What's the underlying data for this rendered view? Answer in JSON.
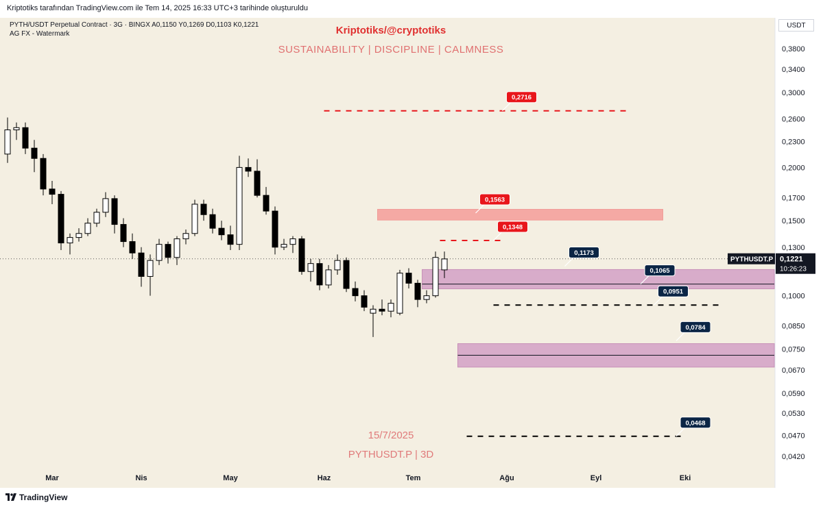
{
  "header": {
    "attribution": "Kriptotiks tarafından TradingView.com ile Tem 14, 2025 16:33 UTC+3 tarihinde oluşturuldu",
    "symbol_line": "PYTH/USDT Perpetual Contract · 3G · BINGX  A0,1150  Y0,1269  D0,1103  K0,1221",
    "indicator_line": "AG FX - Watermark",
    "currency": "USDT"
  },
  "overlay": {
    "brand_title": "Kriptotiks/@cryptotiks",
    "slogan": "SUSTAINABILITY  |  DISCIPLINE  |  CALMNESS",
    "date": "15/7/2025",
    "symbol_tf": "PYTHUSDT.P | 3D"
  },
  "footer": {
    "brand": "TradingView"
  },
  "colors": {
    "background": "#f4efe2",
    "bull": "#ffffff",
    "bear": "#000000",
    "red_label": "#e8161b",
    "navy_label": "#0b2545",
    "pink_zone": "#f4a4a0",
    "purple_zone": "#d6a8c8"
  },
  "chart_data": {
    "type": "candlestick",
    "scale": "log",
    "ylim": [
      0.04,
      0.42
    ],
    "y_ticks": [
      "0,3800",
      "0,3400",
      "0,3000",
      "0,2600",
      "0,2300",
      "0,2000",
      "0,1700",
      "0,1500",
      "0,1300",
      "0,1000",
      "0,0850",
      "0,0750",
      "0,0670",
      "0,0590",
      "0,0530",
      "0,0470",
      "0,0420"
    ],
    "y_tick_values": [
      0.38,
      0.34,
      0.3,
      0.26,
      0.23,
      0.2,
      0.17,
      0.15,
      0.13,
      0.1,
      0.085,
      0.075,
      0.067,
      0.059,
      0.053,
      0.047,
      0.042
    ],
    "x_months": [
      {
        "label": "Mar",
        "index": 5
      },
      {
        "label": "Nis",
        "index": 15
      },
      {
        "label": "May",
        "index": 25
      },
      {
        "label": "Haz",
        "index": 35.5
      },
      {
        "label": "Tem",
        "index": 45.5
      },
      {
        "label": "Ağu",
        "index": 56
      },
      {
        "label": "Eyl",
        "index": 66
      },
      {
        "label": "Eki",
        "index": 76
      }
    ],
    "candles": [
      [
        0.215,
        0.262,
        0.205,
        0.245
      ],
      [
        0.245,
        0.255,
        0.232,
        0.248
      ],
      [
        0.248,
        0.255,
        0.215,
        0.222
      ],
      [
        0.222,
        0.232,
        0.195,
        0.21
      ],
      [
        0.21,
        0.215,
        0.172,
        0.178
      ],
      [
        0.178,
        0.186,
        0.164,
        0.173
      ],
      [
        0.173,
        0.176,
        0.128,
        0.133
      ],
      [
        0.133,
        0.14,
        0.125,
        0.137
      ],
      [
        0.137,
        0.144,
        0.134,
        0.14
      ],
      [
        0.14,
        0.152,
        0.138,
        0.148
      ],
      [
        0.148,
        0.16,
        0.145,
        0.157
      ],
      [
        0.157,
        0.175,
        0.153,
        0.169
      ],
      [
        0.169,
        0.172,
        0.14,
        0.147
      ],
      [
        0.147,
        0.152,
        0.13,
        0.134
      ],
      [
        0.134,
        0.14,
        0.122,
        0.126
      ],
      [
        0.126,
        0.13,
        0.105,
        0.111
      ],
      [
        0.111,
        0.125,
        0.1,
        0.121
      ],
      [
        0.121,
        0.136,
        0.118,
        0.132
      ],
      [
        0.132,
        0.134,
        0.119,
        0.123
      ],
      [
        0.123,
        0.138,
        0.118,
        0.136
      ],
      [
        0.136,
        0.143,
        0.132,
        0.14
      ],
      [
        0.14,
        0.168,
        0.138,
        0.164
      ],
      [
        0.164,
        0.168,
        0.15,
        0.155
      ],
      [
        0.155,
        0.16,
        0.14,
        0.144
      ],
      [
        0.144,
        0.15,
        0.135,
        0.139
      ],
      [
        0.139,
        0.146,
        0.128,
        0.132
      ],
      [
        0.132,
        0.213,
        0.128,
        0.2
      ],
      [
        0.2,
        0.21,
        0.19,
        0.196
      ],
      [
        0.196,
        0.209,
        0.17,
        0.172
      ],
      [
        0.172,
        0.18,
        0.155,
        0.158
      ],
      [
        0.158,
        0.162,
        0.125,
        0.13
      ],
      [
        0.13,
        0.136,
        0.128,
        0.132
      ],
      [
        0.132,
        0.138,
        0.126,
        0.136
      ],
      [
        0.136,
        0.138,
        0.112,
        0.114
      ],
      [
        0.114,
        0.122,
        0.108,
        0.119
      ],
      [
        0.119,
        0.122,
        0.103,
        0.106
      ],
      [
        0.106,
        0.118,
        0.104,
        0.115
      ],
      [
        0.115,
        0.125,
        0.112,
        0.121
      ],
      [
        0.121,
        0.123,
        0.102,
        0.104
      ],
      [
        0.104,
        0.108,
        0.097,
        0.1
      ],
      [
        0.1,
        0.103,
        0.092,
        0.094
      ],
      [
        0.091,
        0.095,
        0.08,
        0.093
      ],
      [
        0.093,
        0.098,
        0.09,
        0.092
      ],
      [
        0.092,
        0.098,
        0.089,
        0.096
      ],
      [
        0.091,
        0.115,
        0.09,
        0.113
      ],
      [
        0.113,
        0.116,
        0.104,
        0.107
      ],
      [
        0.107,
        0.109,
        0.094,
        0.098
      ],
      [
        0.098,
        0.103,
        0.096,
        0.1
      ],
      [
        0.1,
        0.127,
        0.099,
        0.123
      ],
      [
        0.115,
        0.127,
        0.11,
        0.122
      ]
    ],
    "current_price": {
      "value": 0.1221,
      "label": "0,1221",
      "ticker": "PYTHUSDT.P",
      "countdown": "10:26:23"
    },
    "zones": [
      {
        "name": "resistance-zone",
        "low": 0.1505,
        "high": 0.1595,
        "start": 41.5,
        "end": 73.5,
        "kind": "pink"
      },
      {
        "name": "support-zone-1",
        "low": 0.1038,
        "high": 0.1152,
        "start": 46.5,
        "end": 86,
        "kind": "purple",
        "mid": 0.1065
      },
      {
        "name": "support-zone-2",
        "low": 0.068,
        "high": 0.0772,
        "start": 50.5,
        "end": 86,
        "kind": "purple",
        "mid": 0.0725
      }
    ],
    "dashed_lines": [
      {
        "name": "target-0.2716",
        "value": 0.2716,
        "start": 35.5,
        "end": 69.5,
        "color": "red"
      },
      {
        "name": "target-0.1348",
        "value": 0.1348,
        "start": 48.5,
        "end": 55.5,
        "color": "red"
      },
      {
        "name": "level-0.0951",
        "value": 0.0951,
        "start": 54.5,
        "end": 80,
        "color": "black"
      },
      {
        "name": "level-0.0468",
        "value": 0.0468,
        "start": 51.5,
        "end": 76,
        "color": "black"
      }
    ],
    "labels": [
      {
        "text": "0,2716",
        "value": 0.2716,
        "at": 55.5,
        "color": "red"
      },
      {
        "text": "0,1563",
        "value": 0.1563,
        "at": 52.5,
        "color": "red"
      },
      {
        "text": "0,1348",
        "value": 0.1348,
        "at": 54.5,
        "color": "red"
      },
      {
        "text": "0,1173",
        "value": 0.1173,
        "at": 62.5,
        "color": "navy"
      },
      {
        "text": "0,1065",
        "value": 0.1065,
        "at": 71,
        "color": "navy"
      },
      {
        "text": "0,0951",
        "value": 0.0951,
        "at": 72.5,
        "color": "navy"
      },
      {
        "text": "0,0784",
        "value": 0.0784,
        "at": 75,
        "color": "navy"
      },
      {
        "text": "0,0468",
        "value": 0.0468,
        "at": 75,
        "color": "navy"
      }
    ]
  }
}
